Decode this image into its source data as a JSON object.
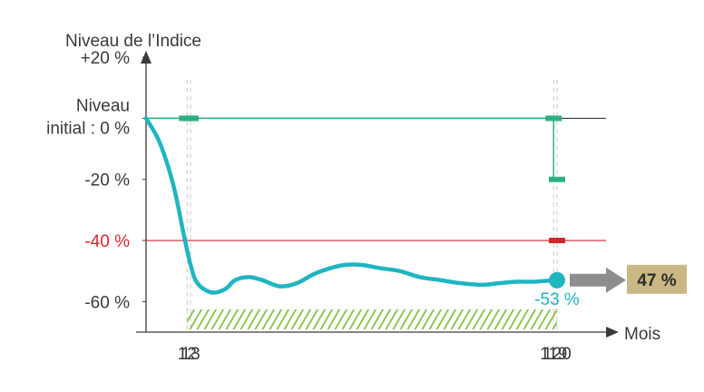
{
  "chart_data": {
    "type": "line",
    "title": "",
    "ylabel": "Niveau de l’Indice",
    "xlabel": "Mois",
    "ylim": [
      -70,
      23
    ],
    "xlim": [
      0,
      143
    ],
    "y_ticks": [
      {
        "value": 20,
        "label": "+20 %",
        "color": "#3a3a3a"
      },
      {
        "value": 0,
        "label": "Niveau",
        "label2": "initial : 0 %",
        "color": "#3a3a3a"
      },
      {
        "value": -20,
        "label": "-20 %",
        "color": "#3a3a3a"
      },
      {
        "value": -40,
        "label": "-40 %",
        "color": "#d6252a"
      },
      {
        "value": -60,
        "label": "-60 %",
        "color": "#3a3a3a"
      }
    ],
    "x_ticks": [
      {
        "value": 12,
        "label": "12"
      },
      {
        "value": 13,
        "label": "13"
      },
      {
        "value": 119,
        "label": "119"
      },
      {
        "value": 120,
        "label": "120"
      }
    ],
    "series": [
      {
        "color": "#1fb5c1",
        "x": [
          0,
          4,
          8,
          11,
          13,
          15,
          19,
          23,
          26,
          30,
          34,
          39,
          44,
          49,
          54,
          58,
          63,
          68,
          74,
          80,
          86,
          92,
          98,
          103,
          108,
          113,
          117,
          120
        ],
        "y": [
          0,
          -8,
          -22,
          -38,
          -48,
          -54,
          -57,
          -56,
          -53,
          -52,
          -53,
          -55,
          -54,
          -51,
          -49,
          -48,
          -48,
          -49,
          -50,
          -52,
          -53,
          -54,
          -54.5,
          -54,
          -53.5,
          -53.5,
          -53.2,
          -53
        ]
      }
    ],
    "reference_lines": [
      {
        "value": 0,
        "color": "#3a3a3a"
      },
      {
        "value": -40,
        "color": "#d6252a"
      }
    ],
    "barrier_steps": [
      {
        "from": 0,
        "to": 119,
        "level": 0,
        "color": "#2bb07f"
      },
      {
        "from": 119,
        "to": 120,
        "level": -20,
        "color": "#2bb07f"
      }
    ],
    "markers": [
      {
        "x": 12,
        "y": 0,
        "color": "#2bb07f"
      },
      {
        "x": 13,
        "y": 0,
        "color": "#2bb07f"
      },
      {
        "x": 119,
        "y": 0,
        "color": "#2bb07f"
      },
      {
        "x": 120,
        "y": -20,
        "color": "#2bb07f"
      },
      {
        "x": 120,
        "y": -40,
        "color": "#d6252a"
      }
    ],
    "final_point": {
      "x": 120,
      "y": -53,
      "label": "-53 %",
      "color": "#1fb5c1"
    },
    "hatch_region": {
      "from": 12,
      "to": 120,
      "color": "#8bc34a"
    },
    "result": {
      "label": "47 %",
      "box_color": "#c9b883",
      "arrow_color": "#8d8d8d"
    }
  }
}
